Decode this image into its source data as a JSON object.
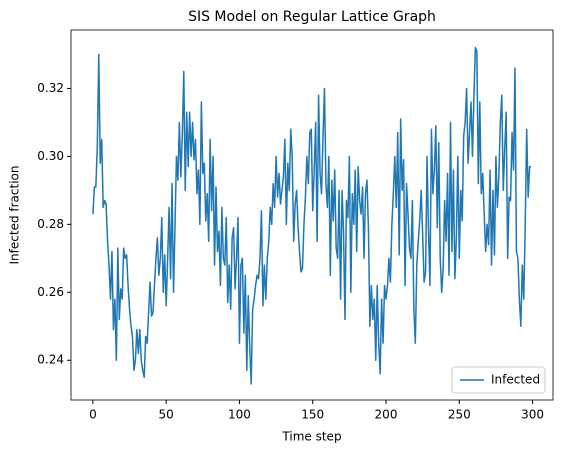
{
  "chart_data": {
    "type": "line",
    "title": "SIS Model on Regular Lattice Graph",
    "xlabel": "Time step",
    "ylabel": "Infected fraction",
    "x": [
      0,
      1,
      2,
      3,
      4,
      5,
      6,
      7,
      8,
      9,
      10,
      11,
      12,
      13,
      14,
      15,
      16,
      17,
      18,
      19,
      20,
      21,
      22,
      23,
      24,
      25,
      26,
      27,
      28,
      29,
      30,
      31,
      32,
      33,
      34,
      35,
      36,
      37,
      38,
      39,
      40,
      41,
      42,
      43,
      44,
      45,
      46,
      47,
      48,
      49,
      50,
      51,
      52,
      53,
      54,
      55,
      56,
      57,
      58,
      59,
      60,
      61,
      62,
      63,
      64,
      65,
      66,
      67,
      68,
      69,
      70,
      71,
      72,
      73,
      74,
      75,
      76,
      77,
      78,
      79,
      80,
      81,
      82,
      83,
      84,
      85,
      86,
      87,
      88,
      89,
      90,
      91,
      92,
      93,
      94,
      95,
      96,
      97,
      98,
      99,
      100,
      101,
      102,
      103,
      104,
      105,
      106,
      107,
      108,
      109,
      110,
      111,
      112,
      113,
      114,
      115,
      116,
      117,
      118,
      119,
      120,
      121,
      122,
      123,
      124,
      125,
      126,
      127,
      128,
      129,
      130,
      131,
      132,
      133,
      134,
      135,
      136,
      137,
      138,
      139,
      140,
      141,
      142,
      143,
      144,
      145,
      146,
      147,
      148,
      149,
      150,
      151,
      152,
      153,
      154,
      155,
      156,
      157,
      158,
      159,
      160,
      161,
      162,
      163,
      164,
      165,
      166,
      167,
      168,
      169,
      170,
      171,
      172,
      173,
      174,
      175,
      176,
      177,
      178,
      179,
      180,
      181,
      182,
      183,
      184,
      185,
      186,
      187,
      188,
      189,
      190,
      191,
      192,
      193,
      194,
      195,
      196,
      197,
      198,
      199,
      200,
      201,
      202,
      203,
      204,
      205,
      206,
      207,
      208,
      209,
      210,
      211,
      212,
      213,
      214,
      215,
      216,
      217,
      218,
      219,
      220,
      221,
      222,
      223,
      224,
      225,
      226,
      227,
      228,
      229,
      230,
      231,
      232,
      233,
      234,
      235,
      236,
      237,
      238,
      239,
      240,
      241,
      242,
      243,
      244,
      245,
      246,
      247,
      248,
      249,
      250,
      251,
      252,
      253,
      254,
      255,
      256,
      257,
      258,
      259,
      260,
      261,
      262,
      263,
      264,
      265,
      266,
      267,
      268,
      269,
      270,
      271,
      272,
      273,
      274,
      275,
      276,
      277,
      278,
      279,
      280,
      281,
      282,
      283,
      284,
      285,
      286,
      287,
      288,
      289,
      290,
      291,
      292,
      293,
      294,
      295,
      296,
      297,
      298,
      299
    ],
    "series": [
      {
        "name": "Infected",
        "color": "#1f77b4",
        "values": [
          0.283,
          0.291,
          0.291,
          0.303,
          0.33,
          0.298,
          0.305,
          0.285,
          0.287,
          0.286,
          0.275,
          0.268,
          0.258,
          0.272,
          0.249,
          0.258,
          0.24,
          0.273,
          0.252,
          0.261,
          0.258,
          0.273,
          0.27,
          0.271,
          0.262,
          0.255,
          0.25,
          0.247,
          0.237,
          0.24,
          0.249,
          0.242,
          0.249,
          0.24,
          0.237,
          0.235,
          0.247,
          0.245,
          0.254,
          0.263,
          0.253,
          0.254,
          0.262,
          0.27,
          0.276,
          0.265,
          0.27,
          0.282,
          0.26,
          0.271,
          0.256,
          0.27,
          0.285,
          0.264,
          0.292,
          0.26,
          0.279,
          0.3,
          0.293,
          0.31,
          0.294,
          0.306,
          0.325,
          0.29,
          0.313,
          0.297,
          0.313,
          0.3,
          0.31,
          0.299,
          0.305,
          0.289,
          0.296,
          0.28,
          0.316,
          0.295,
          0.298,
          0.281,
          0.289,
          0.275,
          0.305,
          0.284,
          0.3,
          0.268,
          0.291,
          0.272,
          0.278,
          0.262,
          0.285,
          0.27,
          0.268,
          0.282,
          0.257,
          0.268,
          0.255,
          0.276,
          0.279,
          0.261,
          0.27,
          0.282,
          0.245,
          0.268,
          0.27,
          0.248,
          0.265,
          0.237,
          0.259,
          0.244,
          0.233,
          0.255,
          0.258,
          0.262,
          0.265,
          0.264,
          0.27,
          0.284,
          0.256,
          0.268,
          0.258,
          0.27,
          0.275,
          0.285,
          0.28,
          0.292,
          0.285,
          0.3,
          0.288,
          0.295,
          0.286,
          0.29,
          0.294,
          0.305,
          0.28,
          0.298,
          0.29,
          0.308,
          0.3,
          0.275,
          0.286,
          0.29,
          0.279,
          0.272,
          0.266,
          0.267,
          0.28,
          0.288,
          0.3,
          0.292,
          0.307,
          0.308,
          0.284,
          0.296,
          0.31,
          0.275,
          0.318,
          0.295,
          0.289,
          0.306,
          0.32,
          0.292,
          0.285,
          0.3,
          0.265,
          0.293,
          0.281,
          0.296,
          0.273,
          0.27,
          0.29,
          0.258,
          0.29,
          0.278,
          0.252,
          0.287,
          0.282,
          0.3,
          0.26,
          0.289,
          0.28,
          0.296,
          0.272,
          0.297,
          0.287,
          0.283,
          0.291,
          0.27,
          0.289,
          0.293,
          0.279,
          0.25,
          0.262,
          0.252,
          0.258,
          0.24,
          0.262,
          0.245,
          0.236,
          0.258,
          0.245,
          0.262,
          0.258,
          0.262,
          0.27,
          0.263,
          0.28,
          0.289,
          0.3,
          0.285,
          0.307,
          0.271,
          0.311,
          0.29,
          0.299,
          0.262,
          0.292,
          0.283,
          0.273,
          0.27,
          0.287,
          0.255,
          0.245,
          0.268,
          0.275,
          0.281,
          0.29,
          0.277,
          0.263,
          0.266,
          0.3,
          0.278,
          0.262,
          0.308,
          0.289,
          0.296,
          0.309,
          0.279,
          0.304,
          0.27,
          0.26,
          0.267,
          0.287,
          0.275,
          0.295,
          0.265,
          0.31,
          0.272,
          0.296,
          0.264,
          0.276,
          0.3,
          0.27,
          0.29,
          0.281,
          0.306,
          0.31,
          0.32,
          0.298,
          0.307,
          0.316,
          0.3,
          0.318,
          0.332,
          0.331,
          0.292,
          0.316,
          0.289,
          0.295,
          0.283,
          0.272,
          0.28,
          0.274,
          0.296,
          0.268,
          0.29,
          0.271,
          0.3,
          0.285,
          0.294,
          0.31,
          0.318,
          0.29,
          0.302,
          0.313,
          0.27,
          0.288,
          0.287,
          0.307,
          0.296,
          0.326,
          0.272,
          0.27,
          0.258,
          0.25,
          0.268,
          0.258,
          0.28,
          0.308,
          0.288,
          0.297,
          0.297
        ]
      }
    ],
    "xlim": [
      -14.95,
      313.95
    ],
    "xticks": [
      0,
      50,
      100,
      150,
      200,
      250,
      300
    ],
    "ylim": [
      0.2283,
      0.3372
    ],
    "yticks": [
      0.24,
      0.26,
      0.28,
      {
        "value": 0.3,
        "label": "0.30"
      },
      0.32
    ],
    "legend": "lower right"
  }
}
